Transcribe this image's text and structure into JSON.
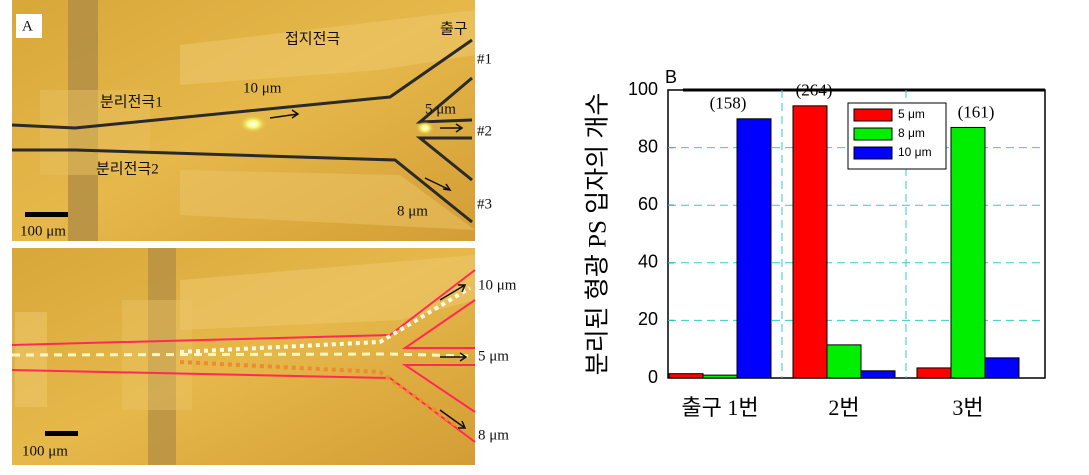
{
  "panel_a": {
    "label": "A",
    "ground_electrode": "접지전극",
    "outlet": "출구",
    "outlet_1": "#1",
    "outlet_2": "#2",
    "outlet_3": "#3",
    "sep_electrode_1": "분리전극1",
    "sep_electrode_2": "분리전극2",
    "top_10um": "10 μm",
    "top_5um": "5 μm",
    "top_8um": "8 μm",
    "top_scale": "100 μm",
    "bottom_10um": "10 μm",
    "bottom_5um": "5 μm",
    "bottom_8um": "8 μm",
    "bottom_scale": "100 μm"
  },
  "chart_data": {
    "type": "bar",
    "title": "B",
    "y_label": "분리된 형광 PS 입자의 개수",
    "categories": [
      "출구 1번",
      "2번",
      "3번"
    ],
    "series": [
      {
        "name": "5 μm",
        "color": "#ff0000",
        "values": [
          1.5,
          94.5,
          3.5
        ]
      },
      {
        "name": "8 μm",
        "color": "#00ee00",
        "values": [
          1,
          11.5,
          87
        ]
      },
      {
        "name": "10 μm",
        "color": "#0000ff",
        "values": [
          90,
          2.5,
          7
        ]
      }
    ],
    "annotations": [
      "(158)",
      "(264)",
      "(161)"
    ],
    "ylim": [
      0,
      100
    ],
    "yticks": [
      0,
      20,
      40,
      60,
      80,
      100
    ],
    "grid": true
  }
}
